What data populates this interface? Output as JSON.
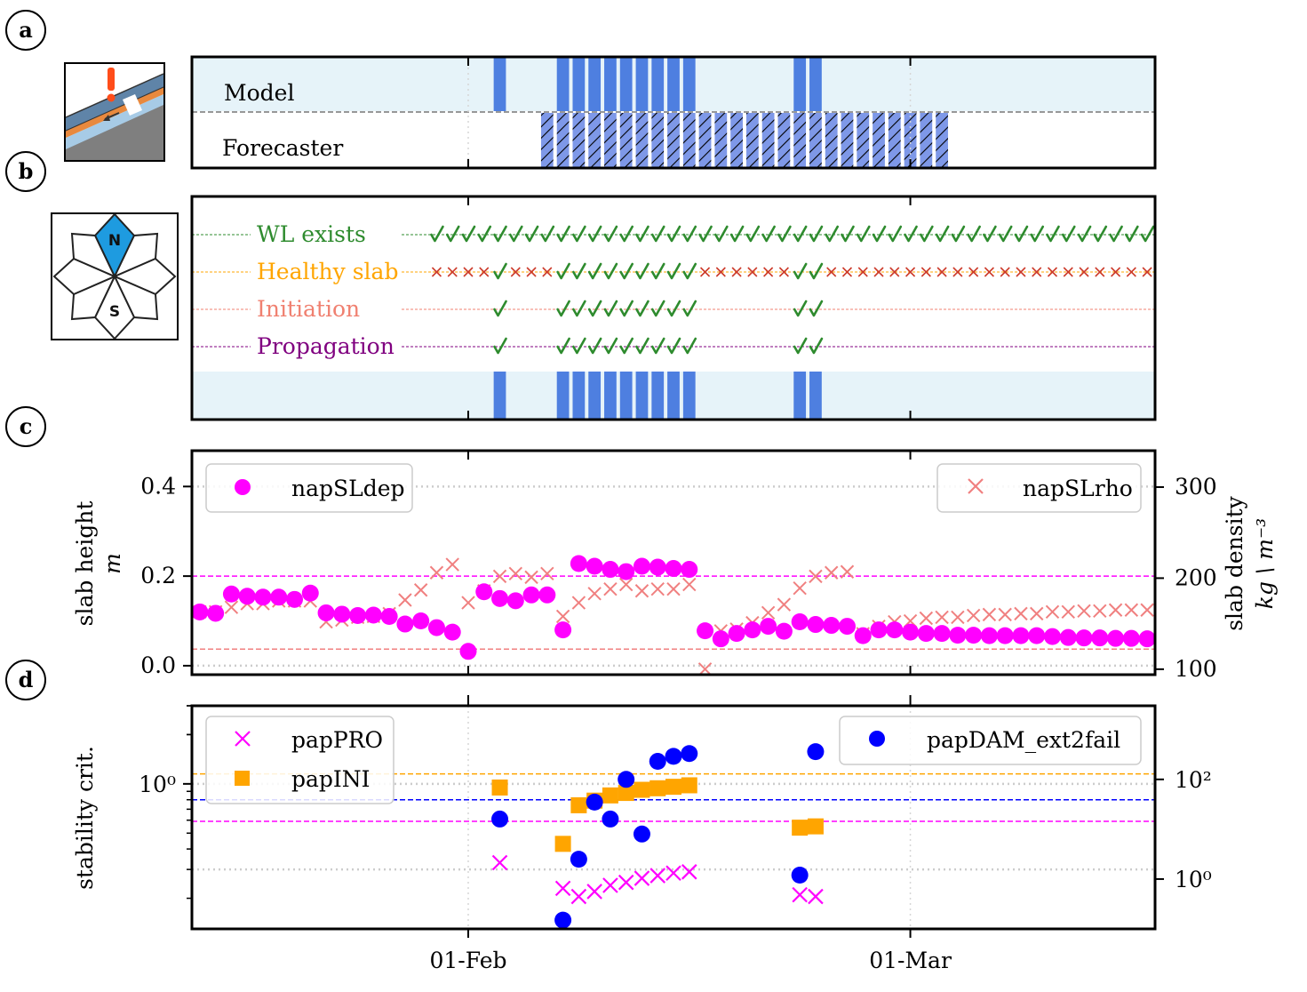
{
  "panel_letters": [
    "a",
    "b",
    "c",
    "d"
  ],
  "colors": {
    "bg_band": "#e6f3f9",
    "bar": "#4e7fe0",
    "hatch_bar": "#7e98e8",
    "check": "#2e8b2e",
    "cross": "#cc3b2b",
    "wl": "#2e8b2e",
    "healthy": "#ffa500",
    "init": "#f08070",
    "prop": "#800080",
    "magenta": "#ff00ff",
    "salmon": "#f08080",
    "orange": "#ffa500",
    "blue": "#0000ff"
  },
  "icons": [
    "slab-warning-icon",
    "aspect-rose-icon"
  ],
  "rose_labels": {
    "north": "N",
    "south": "S"
  },
  "chart_data": [
    {
      "id": "a",
      "type": "bar",
      "x_range": [
        -17,
        43
      ],
      "x_ticks": [
        {
          "x": 0,
          "label": "01-Feb"
        },
        {
          "x": 28,
          "label": "01-Mar"
        }
      ],
      "rows": [
        {
          "label": "Model",
          "days": [
            2,
            6,
            7,
            8,
            9,
            10,
            11,
            12,
            13,
            14,
            21,
            22
          ]
        },
        {
          "label": "Forecaster",
          "hatched": true,
          "days": [
            5,
            6,
            7,
            8,
            9,
            10,
            11,
            12,
            13,
            14,
            15,
            16,
            17,
            18,
            19,
            20,
            21,
            22,
            23,
            24,
            25,
            26,
            27,
            28,
            29,
            30
          ]
        }
      ]
    },
    {
      "id": "b",
      "type": "table",
      "x_range": [
        -17,
        43
      ],
      "days_start": -2,
      "rows": [
        {
          "label": "WL exists",
          "color_key": "wl",
          "checks": "all"
        },
        {
          "label": "Healthy slab",
          "color_key": "healthy",
          "checks": [
            2,
            6,
            7,
            8,
            9,
            10,
            11,
            12,
            13,
            14,
            21,
            22
          ]
        },
        {
          "label": "Initiation",
          "color_key": "init",
          "checks": [
            2,
            6,
            7,
            8,
            9,
            10,
            11,
            12,
            13,
            14,
            21,
            22
          ],
          "crosses": false
        },
        {
          "label": "Propagation",
          "color_key": "prop",
          "checks": [
            2,
            6,
            7,
            8,
            9,
            10,
            11,
            12,
            13,
            14,
            21,
            22
          ],
          "crosses": false
        }
      ],
      "bar_days": [
        2,
        6,
        7,
        8,
        9,
        10,
        11,
        12,
        13,
        14,
        21,
        22
      ]
    },
    {
      "id": "c",
      "type": "scatter",
      "x_range": [
        -17,
        43
      ],
      "ylabel": "slab height",
      "ylabel_unit": "m",
      "ylim": [
        -0.02,
        0.48
      ],
      "yticks": [
        0.0,
        0.2,
        0.4
      ],
      "ytick_labels": [
        "0.0",
        "0.2",
        "0.4"
      ],
      "y2label": "slab density",
      "y2label_unit": "kg \\ m⁻³",
      "y2lim": [
        94,
        340
      ],
      "y2ticks": [
        100,
        200,
        300
      ],
      "y2tick_labels": [
        "100",
        "200",
        "300"
      ],
      "hlines": [
        {
          "axis": "left",
          "y": 0.2,
          "color_key": "magenta"
        },
        {
          "axis": "left",
          "y": 0.037,
          "color_key": "salmon"
        }
      ],
      "grid_y": [
        0.0,
        0.4
      ],
      "legend_left": {
        "label": "napSLdep",
        "marker": "circle",
        "color_key": "magenta",
        "position": "upper left"
      },
      "legend_right": {
        "label": "napSLrho",
        "marker": "x",
        "color_key": "salmon",
        "position": "upper right"
      },
      "series": [
        {
          "name": "napSLdep",
          "axis": "left",
          "marker": "circle",
          "color_key": "magenta",
          "x": [
            -17,
            -16,
            -15,
            -14,
            -13,
            -12,
            -11,
            -10,
            -9,
            -8,
            -7,
            -6,
            -5,
            -4,
            -3,
            -2,
            -1,
            0,
            1,
            2,
            3,
            4,
            5,
            6,
            7,
            8,
            9,
            10,
            11,
            12,
            13,
            14,
            15,
            16,
            17,
            18,
            19,
            20,
            21,
            22,
            23,
            24,
            25,
            26,
            27,
            28,
            29,
            30,
            31,
            32,
            33,
            34,
            35,
            36,
            37,
            38,
            39,
            40,
            41,
            42,
            43
          ],
          "y": [
            0.12,
            0.117,
            0.16,
            0.155,
            0.153,
            0.153,
            0.148,
            0.162,
            0.118,
            0.115,
            0.112,
            0.113,
            0.11,
            0.093,
            0.1,
            0.085,
            0.075,
            0.032,
            0.165,
            0.15,
            0.145,
            0.158,
            0.158,
            0.08,
            0.228,
            0.222,
            0.215,
            0.21,
            0.222,
            0.22,
            0.217,
            0.215,
            0.078,
            0.06,
            0.072,
            0.08,
            0.088,
            0.077,
            0.098,
            0.092,
            0.09,
            0.088,
            0.067,
            0.08,
            0.08,
            0.075,
            0.072,
            0.072,
            0.068,
            0.068,
            0.067,
            0.067,
            0.067,
            0.067,
            0.065,
            0.063,
            0.062,
            0.062,
            0.061,
            0.061,
            0.06
          ]
        },
        {
          "name": "napSLrho",
          "axis": "right",
          "marker": "x",
          "color_key": "salmon",
          "x": [
            -17,
            -16,
            -15,
            -14,
            -13,
            -12,
            -11,
            -10,
            -9,
            -8,
            -7,
            -6,
            -5,
            -4,
            -3,
            -2,
            -1,
            0,
            1,
            2,
            3,
            4,
            5,
            6,
            7,
            8,
            9,
            10,
            11,
            12,
            13,
            14,
            15,
            16,
            17,
            18,
            19,
            20,
            21,
            22,
            23,
            24,
            25,
            26,
            27,
            28,
            29,
            30,
            31,
            32,
            33,
            34,
            35,
            36,
            37,
            38,
            39,
            40,
            41,
            42,
            43
          ],
          "y": [
            163,
            163,
            168,
            172,
            172,
            175,
            175,
            175,
            152,
            154,
            157,
            158,
            161,
            176,
            187,
            206,
            215,
            173,
            186,
            202,
            205,
            201,
            205,
            158,
            173,
            183,
            188,
            193,
            186,
            188,
            188,
            193,
            100,
            142,
            144,
            151,
            162,
            171,
            189,
            202,
            206,
            207,
            139,
            147,
            152,
            153,
            156,
            157,
            157,
            159,
            160,
            160,
            161,
            161,
            163,
            163,
            164,
            164,
            165,
            165,
            165
          ]
        }
      ]
    },
    {
      "id": "d",
      "type": "scatter",
      "x_range": [
        -17,
        43
      ],
      "ylabel": "stability crit.",
      "y_scale": "log",
      "ylim": [
        0.13,
        3.0
      ],
      "ytick_major": [
        1.0
      ],
      "ytick_labels": [
        "10⁰"
      ],
      "y2_scale": "log",
      "y2lim": [
        0.1,
        3000
      ],
      "y2ticks": [
        1,
        100
      ],
      "y2tick_labels": [
        "10⁰",
        "10²"
      ],
      "x_ticks": [
        {
          "x": 0,
          "label": "01-Feb"
        },
        {
          "x": 28,
          "label": "01-Mar"
        }
      ],
      "hlines": [
        {
          "axis": "left",
          "y": 1.15,
          "color_key": "orange"
        },
        {
          "axis": "left",
          "y": 0.8,
          "color_key": "blue"
        },
        {
          "axis": "left",
          "y": 0.59,
          "color_key": "magenta"
        }
      ],
      "grid_y": [
        1.0,
        0.3
      ],
      "legend_left": [
        {
          "label": "papPRO",
          "marker": "x",
          "color_key": "magenta"
        },
        {
          "label": "papINI",
          "marker": "square",
          "color_key": "orange"
        }
      ],
      "legend_right": [
        {
          "label": "papDAM_ext2fail",
          "marker": "circle",
          "color_key": "blue"
        }
      ],
      "series": [
        {
          "name": "papPRO",
          "axis": "left",
          "marker": "x",
          "color_key": "magenta",
          "x": [
            2,
            6,
            7,
            8,
            9,
            10,
            11,
            12,
            13,
            14,
            21,
            22
          ],
          "y": [
            0.33,
            0.23,
            0.205,
            0.22,
            0.24,
            0.25,
            0.265,
            0.275,
            0.285,
            0.29,
            0.21,
            0.205
          ]
        },
        {
          "name": "papINI",
          "axis": "left",
          "marker": "square",
          "color_key": "orange",
          "x": [
            2,
            6,
            7,
            8,
            9,
            10,
            11,
            12,
            13,
            14,
            21,
            22
          ],
          "y": [
            0.95,
            0.43,
            0.74,
            0.79,
            0.85,
            0.88,
            0.92,
            0.94,
            0.96,
            0.98,
            0.54,
            0.55
          ]
        },
        {
          "name": "papDAM_ext2fail",
          "axis": "right",
          "marker": "circle",
          "color_key": "blue",
          "x": [
            2,
            6,
            7,
            8,
            9,
            10,
            11,
            12,
            13,
            14,
            21,
            22
          ],
          "y": [
            16,
            0.15,
            2.5,
            35,
            16,
            100,
            8,
            230,
            290,
            330,
            1.2,
            360
          ]
        }
      ]
    }
  ]
}
